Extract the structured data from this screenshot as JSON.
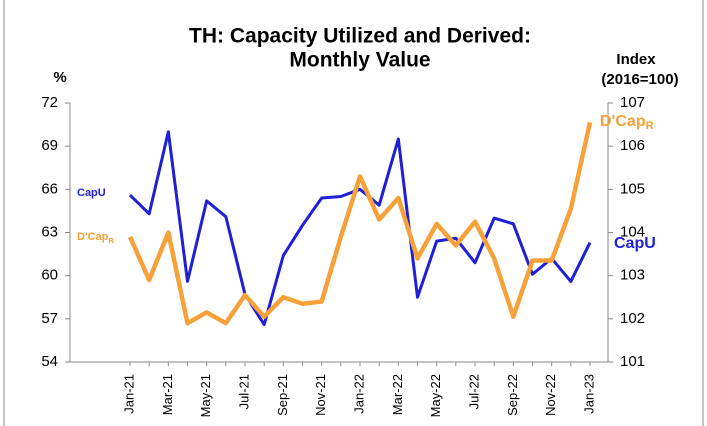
{
  "chart_data": {
    "type": "line",
    "title": [
      "TH: Capacity Utilized and Derived:",
      "Monthly Value"
    ],
    "ylabel": "%",
    "y2label": [
      "Index",
      "(2016=100)"
    ],
    "categories": [
      "Jan-21",
      null,
      "Mar-21",
      null,
      "May-21",
      null,
      "Jul-21",
      null,
      "Sep-21",
      null,
      "Nov-21",
      null,
      "Jan-22",
      null,
      "Mar-22",
      null,
      "May-22",
      null,
      "Jul-22",
      null,
      "Sep-22",
      null,
      "Nov-22",
      null,
      "Jan-23"
    ],
    "ylim": [
      54,
      72
    ],
    "yticks": [
      54,
      57,
      60,
      63,
      66,
      69,
      72
    ],
    "y2lim": [
      101,
      107
    ],
    "y2ticks": [
      101,
      102,
      103,
      104,
      105,
      106,
      107
    ],
    "series": [
      {
        "name": "CapU",
        "color": "#1f1fd6",
        "values": [
          65.6,
          64.3,
          70.0,
          59.6,
          65.2,
          64.1,
          58.7,
          56.6,
          61.4,
          63.5,
          65.4,
          65.5,
          66.0,
          64.9,
          69.5,
          58.5,
          62.4,
          62.6,
          60.9,
          64.0,
          63.6,
          60.1,
          61.2,
          59.6,
          62.3
        ]
      },
      {
        "name": "D'Cap",
        "name_subscript": "R",
        "color": "#f7a13a",
        "axis": "y2",
        "values": [
          103.9,
          102.9,
          104.0,
          101.9,
          102.15,
          101.9,
          102.55,
          102.05,
          102.5,
          102.35,
          102.4,
          103.9,
          105.3,
          104.3,
          104.8,
          103.4,
          104.2,
          103.7,
          104.25,
          103.4,
          102.05,
          103.35,
          103.35,
          104.55,
          106.55
        ]
      }
    ]
  }
}
